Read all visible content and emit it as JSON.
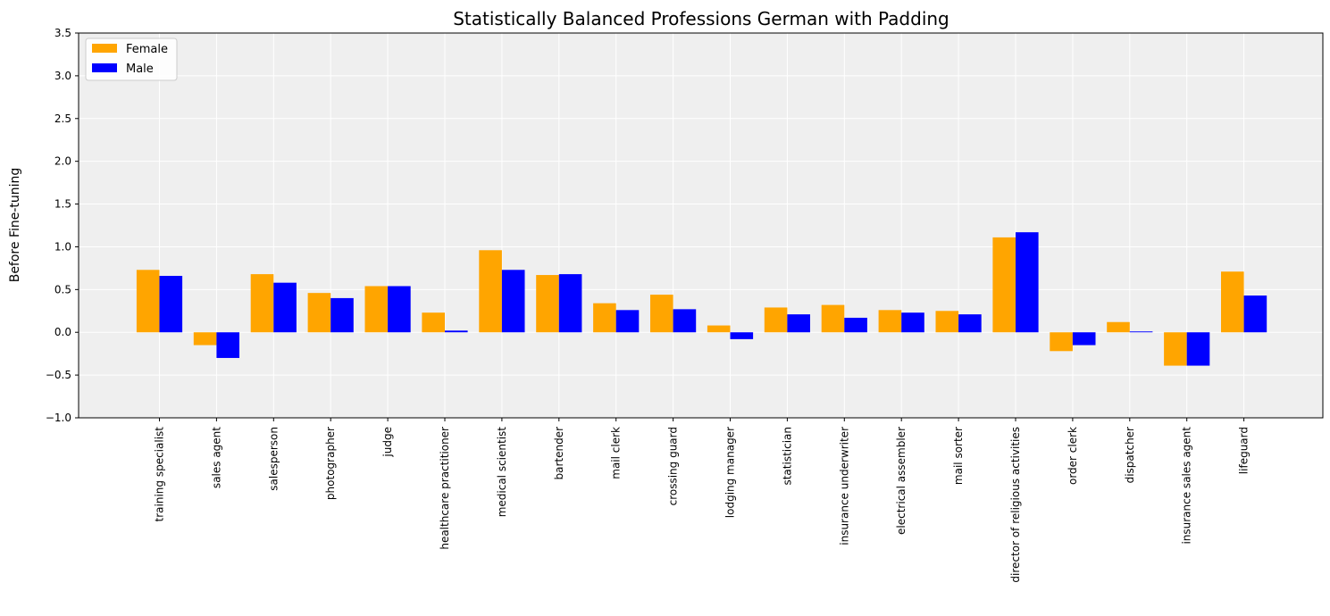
{
  "chart_data": {
    "type": "bar",
    "title": "Statistically Balanced Professions German with Padding",
    "xlabel": "",
    "ylabel": "Before Fine-tuning",
    "ylim": [
      -1.0,
      3.5
    ],
    "yticks": [
      -1.0,
      -0.5,
      0.0,
      0.5,
      1.0,
      1.5,
      2.0,
      2.5,
      3.0,
      3.5
    ],
    "ytick_labels": [
      "−1.0",
      "−0.5",
      "0.0",
      "0.5",
      "1.0",
      "1.5",
      "2.0",
      "2.5",
      "3.0",
      "3.5"
    ],
    "grid": true,
    "legend_position": "top-left",
    "background": "#efefef",
    "categories": [
      "training specialist",
      "sales agent",
      "salesperson",
      "photographer",
      "judge",
      "healthcare practitioner",
      "medical scientist",
      "bartender",
      "mail clerk",
      "crossing guard",
      "lodging manager",
      "statistician",
      "insurance underwriter",
      "electrical assembler",
      "mail sorter",
      "director of religious activities",
      "order clerk",
      "dispatcher",
      "insurance sales agent",
      "lifeguard"
    ],
    "series": [
      {
        "name": "Female",
        "color": "#ffa500",
        "values": [
          0.73,
          -0.15,
          0.68,
          0.46,
          0.54,
          0.23,
          0.96,
          0.67,
          0.34,
          0.44,
          0.08,
          0.29,
          0.32,
          0.26,
          0.25,
          1.11,
          -0.22,
          0.12,
          -0.39,
          0.71
        ]
      },
      {
        "name": "Male",
        "color": "#0000ff",
        "values": [
          0.66,
          -0.3,
          0.58,
          0.4,
          0.54,
          0.02,
          0.73,
          0.68,
          0.26,
          0.27,
          -0.08,
          0.21,
          0.17,
          0.23,
          0.21,
          1.17,
          -0.15,
          0.01,
          -0.39,
          0.43
        ]
      }
    ]
  }
}
